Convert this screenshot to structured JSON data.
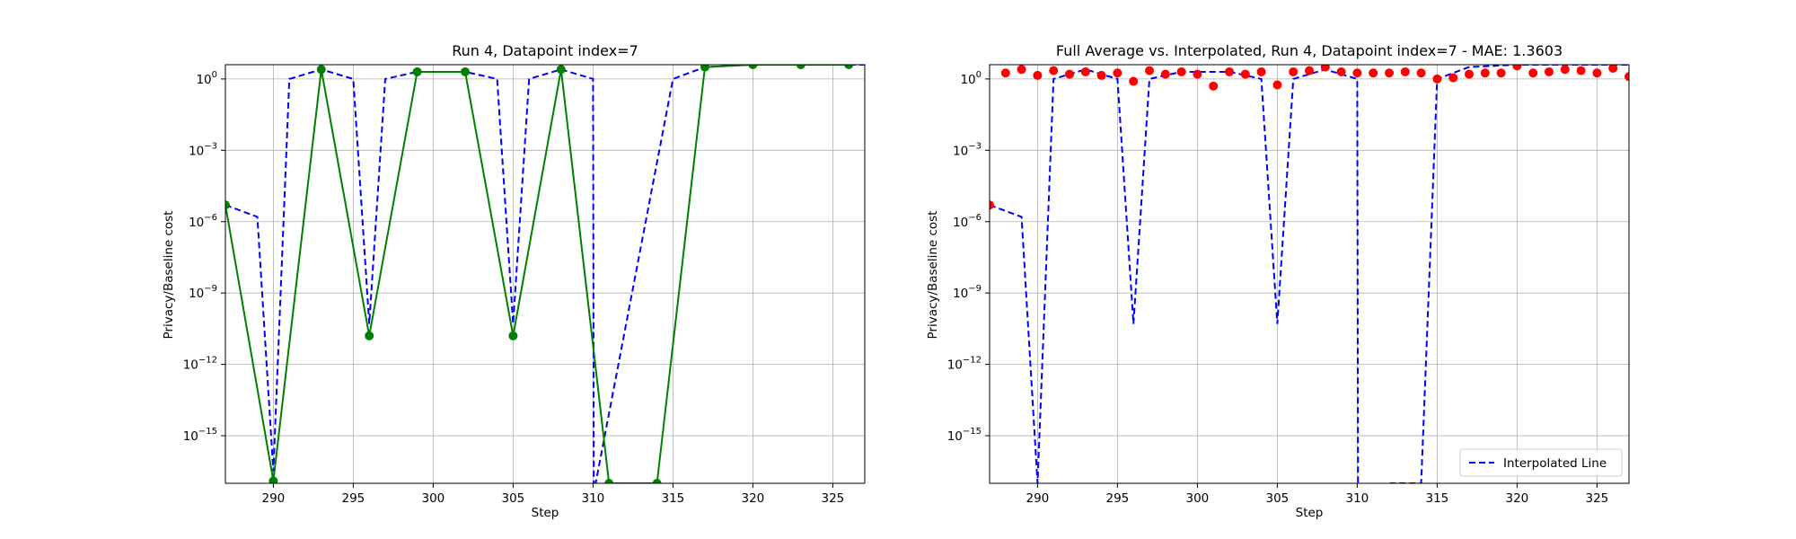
{
  "chart_data": [
    {
      "type": "line",
      "title": "Run 4, Datapoint index=7",
      "xlabel": "Step",
      "ylabel": "Privacy/Baseline cost",
      "xlim": [
        287,
        327
      ],
      "ylim_log10": [
        -17.0,
        0.6
      ],
      "yscale": "log",
      "grid": true,
      "x_ticks": [
        290,
        295,
        300,
        305,
        310,
        315,
        320,
        325
      ],
      "y_ticks": [
        {
          "exp": 0,
          "label": "10",
          "sup": "0"
        },
        {
          "exp": -3,
          "label": "10",
          "sup": "−3"
        },
        {
          "exp": -6,
          "label": "10",
          "sup": "−6"
        },
        {
          "exp": -9,
          "label": "10",
          "sup": "−9"
        },
        {
          "exp": -12,
          "label": "10",
          "sup": "−12"
        },
        {
          "exp": -15,
          "label": "10",
          "sup": "−15"
        }
      ],
      "series": [
        {
          "style": "dashed",
          "color": "#0000ff",
          "points": [
            [
              287,
              -5.3
            ],
            [
              289,
              -5.8
            ],
            [
              290,
              -16.5
            ],
            [
              291,
              0.0
            ],
            [
              293,
              0.4
            ],
            [
              295,
              0.0
            ],
            [
              296,
              -10.3
            ],
            [
              297,
              0.0
            ],
            [
              299,
              0.3
            ],
            [
              302,
              0.3
            ],
            [
              304,
              0.0
            ],
            [
              305,
              -10.3
            ],
            [
              306,
              0.0
            ],
            [
              308,
              0.4
            ],
            [
              310,
              0.0
            ],
            [
              310.05,
              -17.4
            ],
            [
              315,
              0.0
            ],
            [
              317,
              0.5
            ],
            [
              320,
              0.6
            ],
            [
              327,
              0.6
            ]
          ]
        },
        {
          "style": "solid",
          "marker": "circle",
          "color": "#008000",
          "points": [
            [
              287,
              -5.3
            ],
            [
              290,
              -16.9
            ],
            [
              293,
              0.4
            ],
            [
              296,
              -10.8
            ],
            [
              299,
              0.3
            ],
            [
              302,
              0.3
            ],
            [
              305,
              -10.8
            ],
            [
              308,
              0.4
            ],
            [
              311,
              -17.0
            ],
            [
              314,
              -17.0
            ],
            [
              317,
              0.5
            ],
            [
              320,
              0.6
            ],
            [
              323,
              0.6
            ],
            [
              326,
              0.6
            ]
          ]
        }
      ]
    },
    {
      "type": "line",
      "title": "Full Average vs. Interpolated, Run 4, Datapoint index=7 - MAE: 1.3603",
      "xlabel": "Step",
      "ylabel": "Privacy/Baseline cost",
      "xlim": [
        287,
        327
      ],
      "ylim_log10": [
        -17.0,
        0.6
      ],
      "yscale": "log",
      "grid": true,
      "legend_position": "lower-right",
      "x_ticks": [
        290,
        295,
        300,
        305,
        310,
        315,
        320,
        325
      ],
      "y_ticks": [
        {
          "exp": 0,
          "label": "10",
          "sup": "0"
        },
        {
          "exp": -3,
          "label": "10",
          "sup": "−3"
        },
        {
          "exp": -6,
          "label": "10",
          "sup": "−6"
        },
        {
          "exp": -9,
          "label": "10",
          "sup": "−9"
        },
        {
          "exp": -12,
          "label": "10",
          "sup": "−12"
        },
        {
          "exp": -15,
          "label": "10",
          "sup": "−15"
        }
      ],
      "series": [
        {
          "name": "Interpolated Line",
          "style": "dashed",
          "color": "#0000ff",
          "points": [
            [
              287,
              -5.3
            ],
            [
              289,
              -5.8
            ],
            [
              290,
              -17.0
            ],
            [
              291,
              0.0
            ],
            [
              293,
              0.4
            ],
            [
              295,
              0.0
            ],
            [
              296,
              -10.3
            ],
            [
              297,
              0.0
            ],
            [
              299,
              0.3
            ],
            [
              302,
              0.3
            ],
            [
              304,
              0.0
            ],
            [
              305,
              -10.3
            ],
            [
              306,
              0.0
            ],
            [
              308,
              0.4
            ],
            [
              310,
              0.0
            ],
            [
              310.05,
              -17.4
            ],
            [
              312,
              -17.0
            ],
            [
              314,
              -17.0
            ],
            [
              315,
              0.0
            ],
            [
              317,
              0.5
            ],
            [
              320,
              0.6
            ],
            [
              327,
              0.6
            ]
          ]
        },
        {
          "style": "markers",
          "marker": "circle",
          "color": "#ff0000",
          "points": [
            [
              287,
              -5.3
            ],
            [
              288,
              0.25
            ],
            [
              289,
              0.4
            ],
            [
              290,
              0.15
            ],
            [
              291,
              0.35
            ],
            [
              292,
              0.2
            ],
            [
              293,
              0.3
            ],
            [
              294,
              0.15
            ],
            [
              295,
              0.25
            ],
            [
              296,
              -0.1
            ],
            [
              297,
              0.35
            ],
            [
              298,
              0.2
            ],
            [
              299,
              0.3
            ],
            [
              300,
              0.2
            ],
            [
              301,
              -0.3
            ],
            [
              302,
              0.3
            ],
            [
              303,
              0.2
            ],
            [
              304,
              0.3
            ],
            [
              305,
              -0.25
            ],
            [
              306,
              0.3
            ],
            [
              307,
              0.35
            ],
            [
              308,
              0.5
            ],
            [
              309,
              0.3
            ],
            [
              310,
              0.25
            ],
            [
              311,
              0.25
            ],
            [
              312,
              0.25
            ],
            [
              313,
              0.3
            ],
            [
              314,
              0.25
            ],
            [
              315,
              0.0
            ],
            [
              316,
              0.05
            ],
            [
              317,
              0.2
            ],
            [
              318,
              0.25
            ],
            [
              319,
              0.25
            ],
            [
              320,
              0.55
            ],
            [
              321,
              0.25
            ],
            [
              322,
              0.3
            ],
            [
              323,
              0.4
            ],
            [
              324,
              0.35
            ],
            [
              325,
              0.25
            ],
            [
              326,
              0.45
            ],
            [
              327,
              0.1
            ]
          ]
        }
      ]
    }
  ]
}
